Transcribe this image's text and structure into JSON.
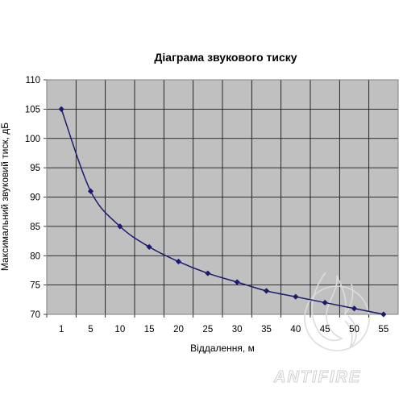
{
  "chart_data": {
    "type": "line",
    "title": "Діаграма звукового тиску",
    "xlabel": "Віддалення, м",
    "ylabel": "Максимальний звуковий тиск, дБ",
    "categories": [
      "1",
      "5",
      "10",
      "15",
      "20",
      "25",
      "30",
      "35",
      "40",
      "45",
      "50",
      "55"
    ],
    "series": [
      {
        "values": [
          105,
          91,
          85,
          81.5,
          79,
          77,
          75.5,
          74,
          73,
          72,
          71,
          70
        ]
      }
    ],
    "ylim": [
      70,
      110
    ],
    "yticks": [
      "70",
      "75",
      "80",
      "85",
      "90",
      "95",
      "100",
      "105",
      "110"
    ],
    "grid": true,
    "legend": "none",
    "colors": {
      "plot_bg": "#c0c0c0",
      "grid": "#000000",
      "series": "#1a1a6e"
    }
  },
  "watermark": {
    "text": "ANTIFIRE",
    "color": "#d9d9d9"
  }
}
